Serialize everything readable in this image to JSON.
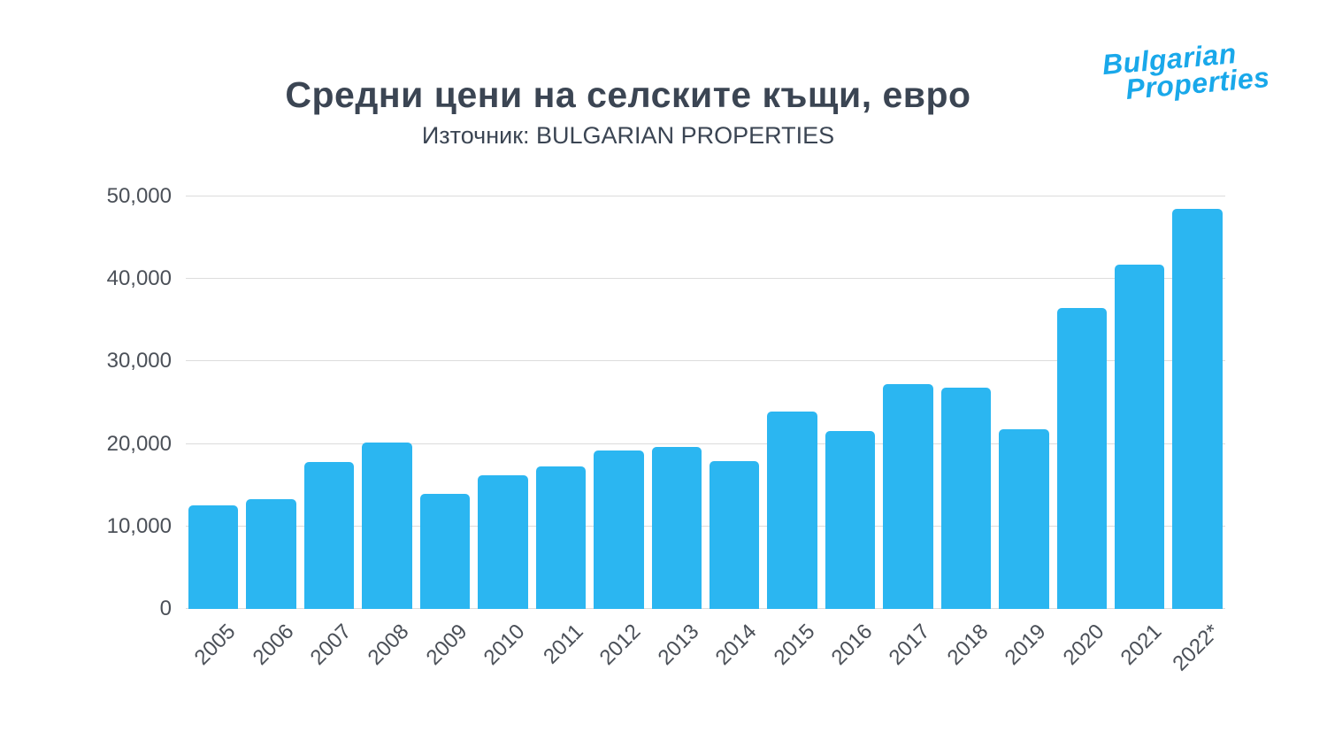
{
  "page": {
    "title": "Средни цени на селските къщи, евро",
    "subtitle": "Източник: BULGARIAN PROPERTIES"
  },
  "logo": {
    "line1": "Bulgarian",
    "line2": "Properties",
    "color": "#19a8ea"
  },
  "chart_data": {
    "type": "bar",
    "title": "Средни цени на селските къщи, евро",
    "subtitle": "Източник: BULGARIAN PROPERTIES",
    "categories": [
      "2005",
      "2006",
      "2007",
      "2008",
      "2009",
      "2010",
      "2011",
      "2012",
      "2013",
      "2014",
      "2015",
      "2016",
      "2017",
      "2018",
      "2019",
      "2020",
      "2021",
      "2022*"
    ],
    "values": [
      12600,
      13300,
      17800,
      20200,
      13900,
      16200,
      17300,
      19200,
      19600,
      17900,
      23900,
      21600,
      27300,
      26800,
      21800,
      36500,
      41700,
      48500
    ],
    "xlabel": "",
    "ylabel": "",
    "ylim": [
      0,
      50000
    ],
    "grid": true,
    "legend": "none",
    "bar_color": "#2bb6f1",
    "yticks": [
      {
        "value": 0,
        "label": "0"
      },
      {
        "value": 10000,
        "label": "10,000"
      },
      {
        "value": 20000,
        "label": "20,000"
      },
      {
        "value": 30000,
        "label": "30,000"
      },
      {
        "value": 40000,
        "label": "40,000"
      },
      {
        "value": 50000,
        "label": "50,000"
      }
    ]
  }
}
